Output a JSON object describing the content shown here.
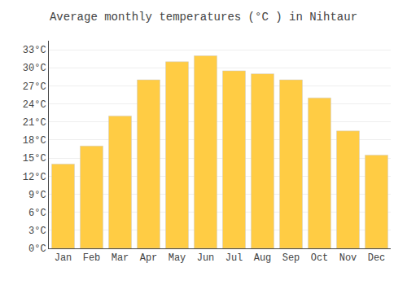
{
  "chart_data": {
    "type": "bar",
    "title": "Average monthly temperatures (°C ) in Nihtaur",
    "categories": [
      "Jan",
      "Feb",
      "Mar",
      "Apr",
      "May",
      "Jun",
      "Jul",
      "Aug",
      "Sep",
      "Oct",
      "Nov",
      "Dec"
    ],
    "values": [
      14,
      17,
      22,
      28,
      31,
      32,
      29.5,
      29,
      28,
      25,
      19.5,
      15.5
    ],
    "color": "#FFCC44",
    "ylim": [
      0,
      34.5
    ],
    "yticks": [
      {
        "value": 0,
        "label": "0°C"
      },
      {
        "value": 3,
        "label": "3°C"
      },
      {
        "value": 6,
        "label": "6°C"
      },
      {
        "value": 9,
        "label": "9°C"
      },
      {
        "value": 12,
        "label": "12°C"
      },
      {
        "value": 15,
        "label": "15°C"
      },
      {
        "value": 18,
        "label": "18°C"
      },
      {
        "value": 21,
        "label": "21°C"
      },
      {
        "value": 24,
        "label": "24°C"
      },
      {
        "value": 27,
        "label": "27°C"
      },
      {
        "value": 30,
        "label": "30°C"
      },
      {
        "value": 33,
        "label": "33°C"
      }
    ],
    "grid": true
  }
}
